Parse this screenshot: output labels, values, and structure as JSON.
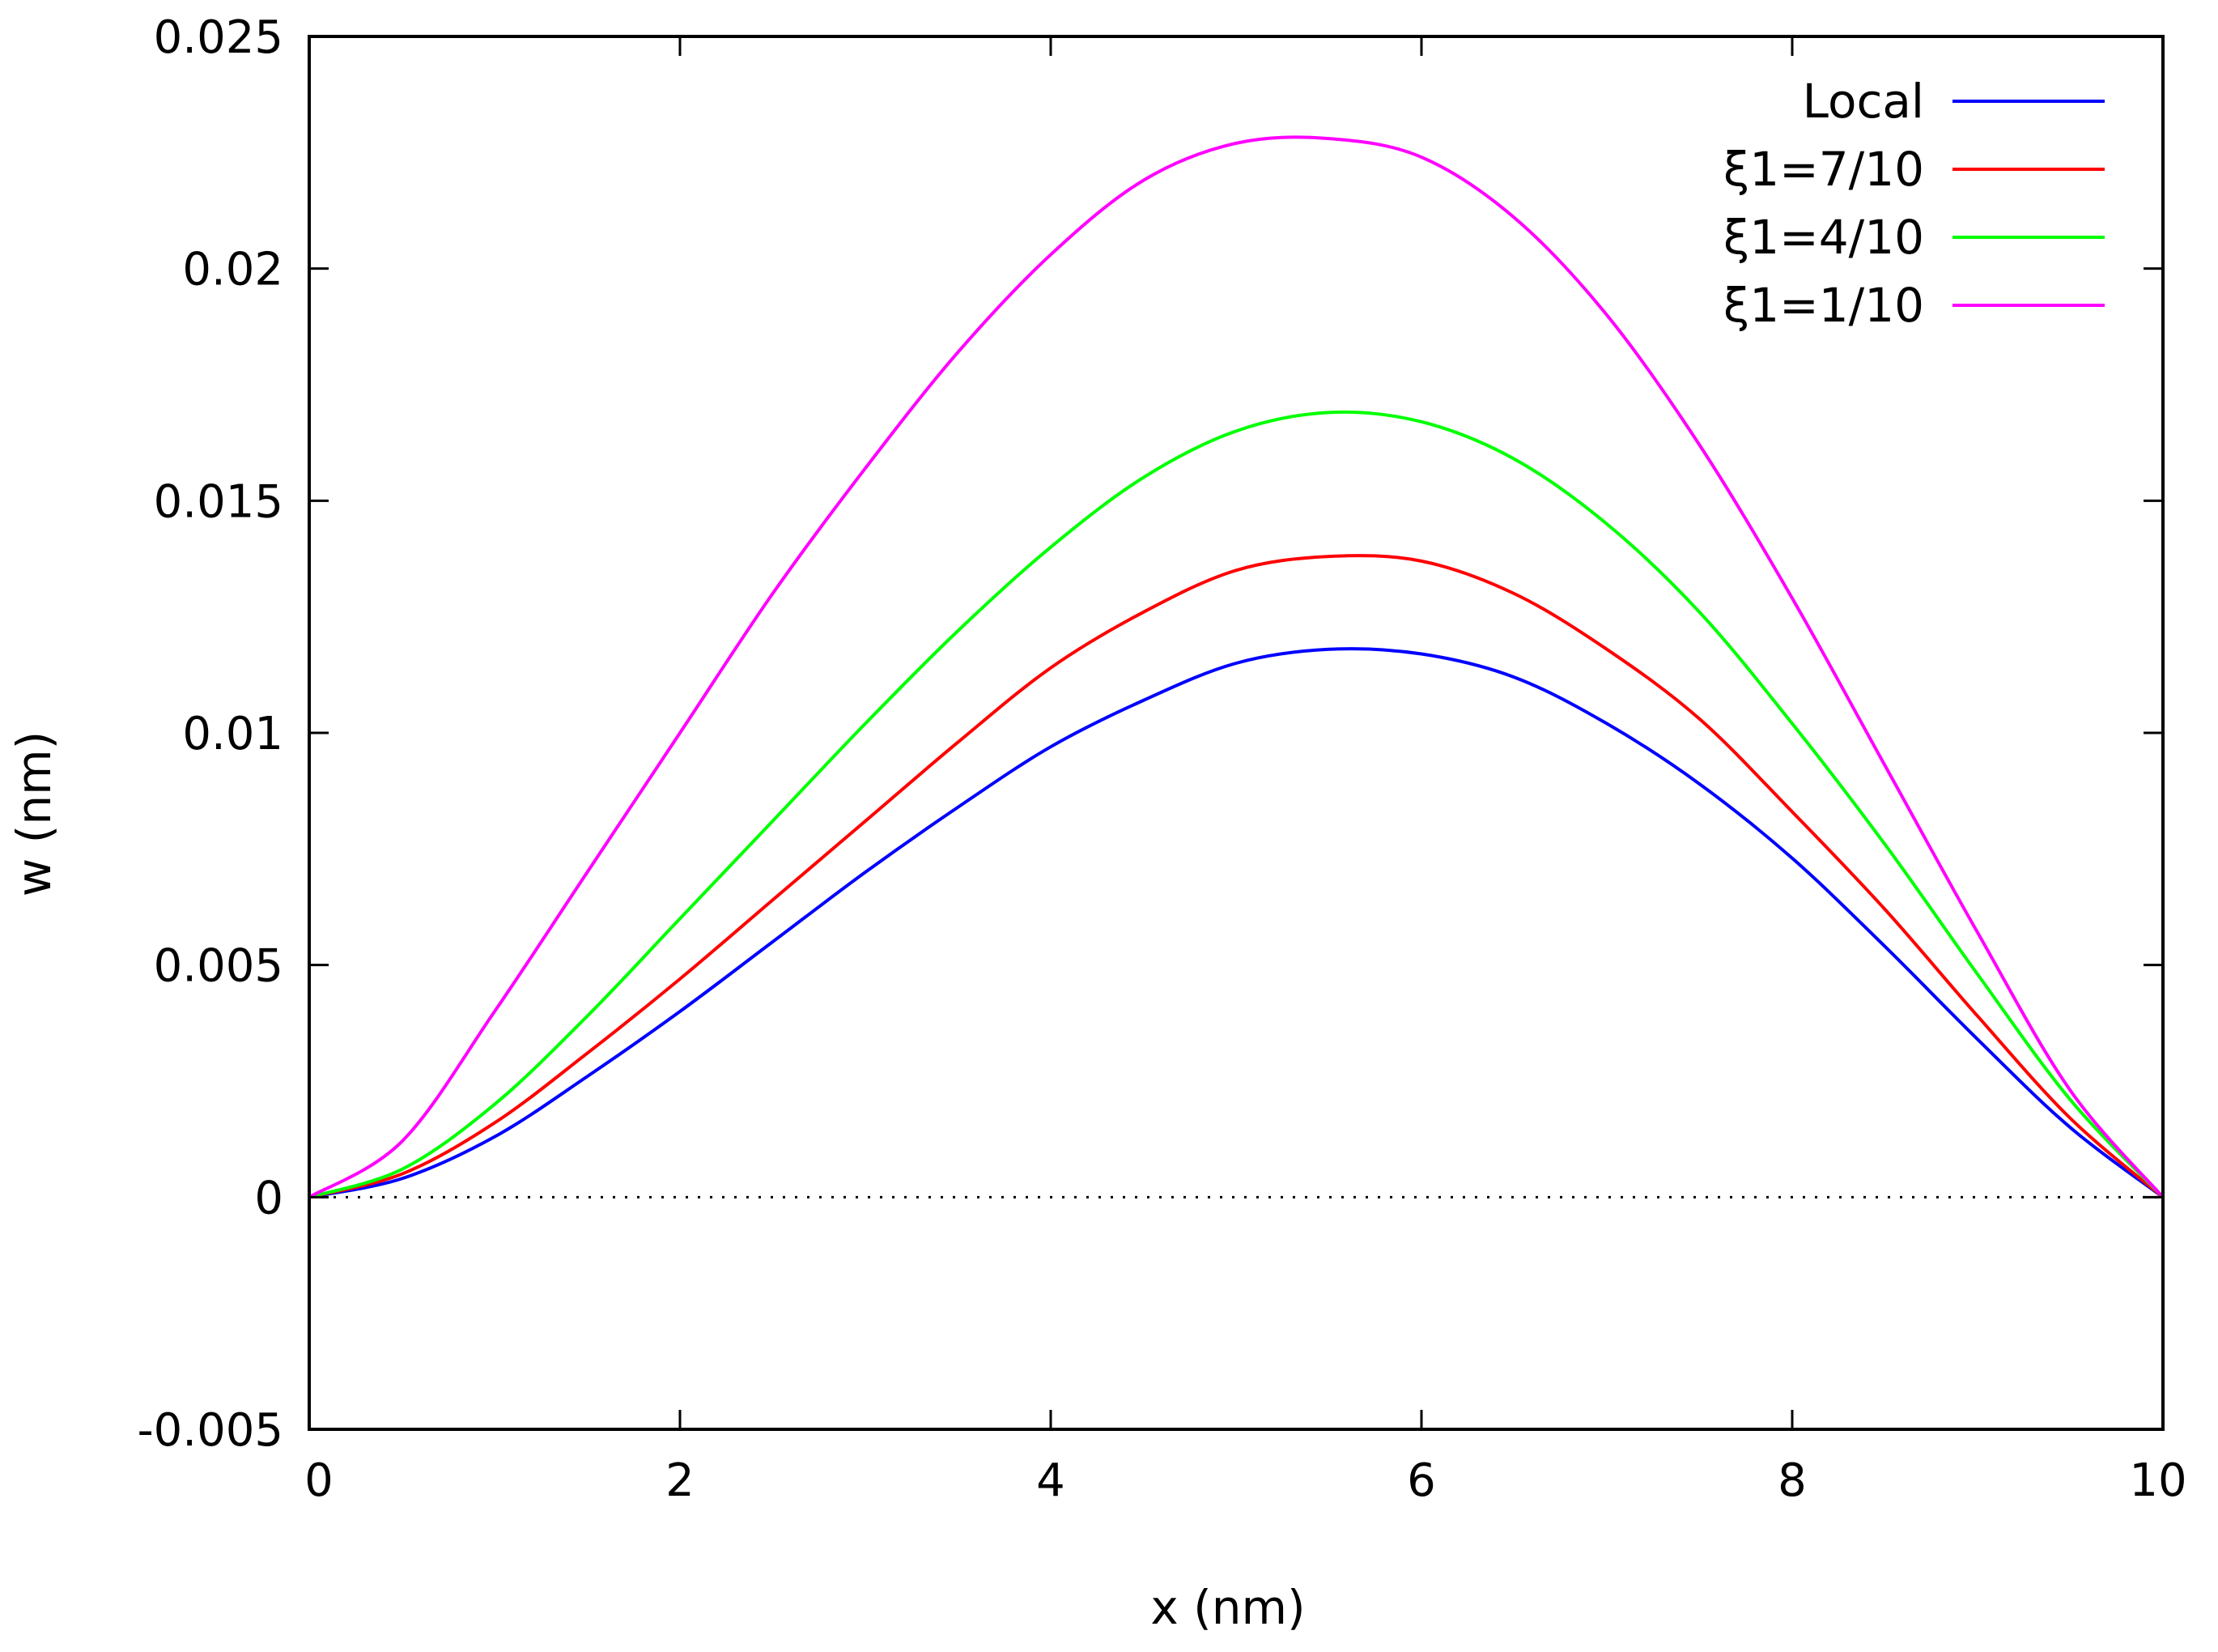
{
  "chart_data": {
    "type": "line",
    "title": "",
    "xlabel": "x (nm)",
    "ylabel": "w (nm)",
    "xlim": [
      0,
      10
    ],
    "ylim": [
      -0.005,
      0.025
    ],
    "xticks": [
      0,
      2,
      4,
      6,
      8,
      10
    ],
    "xtick_labels": [
      "0",
      "2",
      "4",
      "6",
      "8",
      "10"
    ],
    "yticks": [
      -0.005,
      0,
      0.005,
      0.01,
      0.015,
      0.02,
      0.025
    ],
    "ytick_labels": [
      "-0.005",
      "0",
      "0.005",
      "0.01",
      "0.015",
      "0.02",
      "0.025"
    ],
    "zero_line": "dotted",
    "grid": false,
    "legend_position": "top-right",
    "x": [
      0,
      0.5,
      1,
      1.5,
      2,
      2.5,
      3,
      3.5,
      4,
      4.5,
      5,
      5.5,
      6,
      6.5,
      7,
      7.5,
      8,
      8.5,
      9,
      9.5,
      10
    ],
    "series": [
      {
        "name": "Local",
        "color": "#0000ff",
        "values": [
          0,
          0.0004,
          0.0013,
          0.0026,
          0.004,
          0.0055,
          0.007,
          0.0084,
          0.0097,
          0.0107,
          0.0115,
          0.0118,
          0.0117,
          0.0112,
          0.0102,
          0.0089,
          0.0073,
          0.0054,
          0.0034,
          0.0015,
          0
        ]
      },
      {
        "name": "ξ1=7/10",
        "color": "#ff0000",
        "values": [
          0,
          0.0005,
          0.0016,
          0.0031,
          0.0047,
          0.0064,
          0.0081,
          0.0098,
          0.0114,
          0.0126,
          0.0135,
          0.0138,
          0.0137,
          0.013,
          0.0118,
          0.0103,
          0.0083,
          0.0062,
          0.0039,
          0.0017,
          0
        ]
      },
      {
        "name": "ξ1=4/10",
        "color": "#00ff00",
        "values": [
          0,
          0.0006,
          0.002,
          0.0039,
          0.006,
          0.0081,
          0.0102,
          0.0122,
          0.014,
          0.0155,
          0.0165,
          0.0169,
          0.0167,
          0.0159,
          0.0145,
          0.0126,
          0.0102,
          0.0076,
          0.0048,
          0.0021,
          0
        ]
      },
      {
        "name": "ξ1=1/10",
        "color": "#ff00ff",
        "values": [
          0,
          0.0012,
          0.004,
          0.007,
          0.01,
          0.013,
          0.0157,
          0.0182,
          0.0203,
          0.0219,
          0.0227,
          0.0228,
          0.0224,
          0.0211,
          0.019,
          0.0162,
          0.0129,
          0.0093,
          0.0057,
          0.0023,
          0
        ]
      }
    ]
  }
}
